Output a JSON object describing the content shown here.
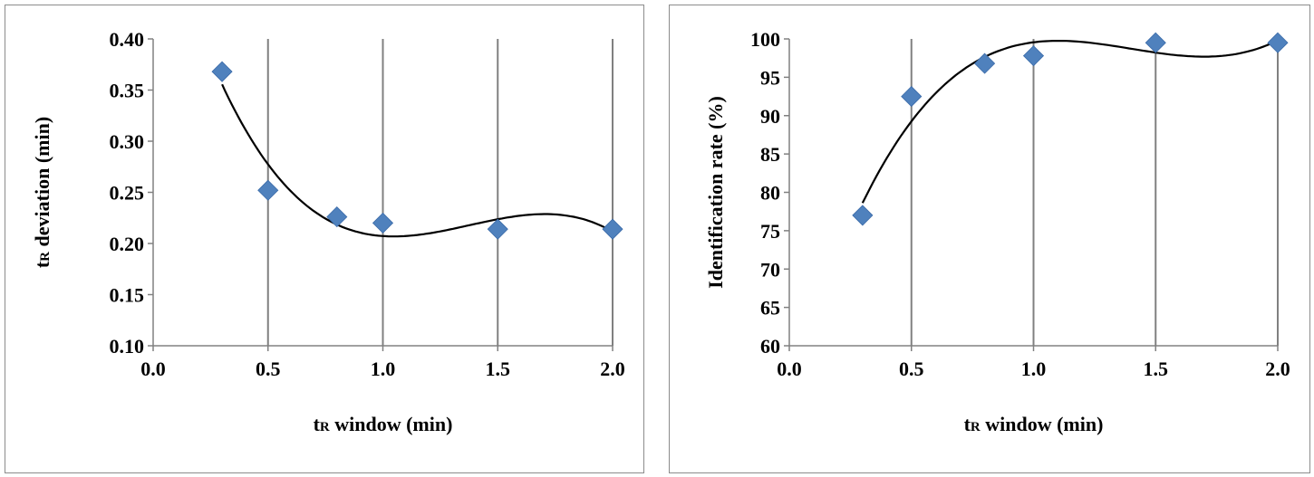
{
  "colors": {
    "marker": "#4f81bd",
    "grid": "#808080",
    "axis": "#808080",
    "curve": "#000000"
  },
  "chart_data": [
    {
      "type": "scatter",
      "title": "",
      "xlabel": {
        "main": "t",
        "sub": "R",
        "rest": " window (min)"
      },
      "ylabel": {
        "main": "t",
        "sub": "R",
        "rest": " deviation (min)"
      },
      "xlim": [
        0.0,
        2.0
      ],
      "ylim": [
        0.1,
        0.4
      ],
      "xticks": [
        "0.0",
        "0.5",
        "1.0",
        "1.5",
        "2.0"
      ],
      "yticks": [
        "0.10",
        "0.15",
        "0.20",
        "0.25",
        "0.30",
        "0.35",
        "0.40"
      ],
      "grid": "vertical",
      "trendline": "polynomial",
      "series": [
        {
          "x": [
            0.3,
            0.5,
            0.8,
            1.0,
            1.5,
            2.0
          ],
          "y": [
            0.368,
            0.252,
            0.226,
            0.22,
            0.214,
            0.214
          ]
        }
      ]
    },
    {
      "type": "scatter",
      "title": "",
      "xlabel": {
        "main": "t",
        "sub": "R",
        "rest": " window (min)"
      },
      "ylabel": {
        "main": "Identification rate (%)",
        "sub": "",
        "rest": ""
      },
      "xlim": [
        0.0,
        2.0
      ],
      "ylim": [
        60,
        100
      ],
      "xticks": [
        "0.0",
        "0.5",
        "1.0",
        "1.5",
        "2.0"
      ],
      "yticks": [
        "60",
        "65",
        "70",
        "75",
        "80",
        "85",
        "90",
        "95",
        "100"
      ],
      "grid": "vertical",
      "trendline": "polynomial",
      "series": [
        {
          "x": [
            0.3,
            0.5,
            0.8,
            1.0,
            1.5,
            2.0
          ],
          "y": [
            77.0,
            92.5,
            96.8,
            97.8,
            99.5,
            99.5
          ]
        }
      ]
    }
  ]
}
